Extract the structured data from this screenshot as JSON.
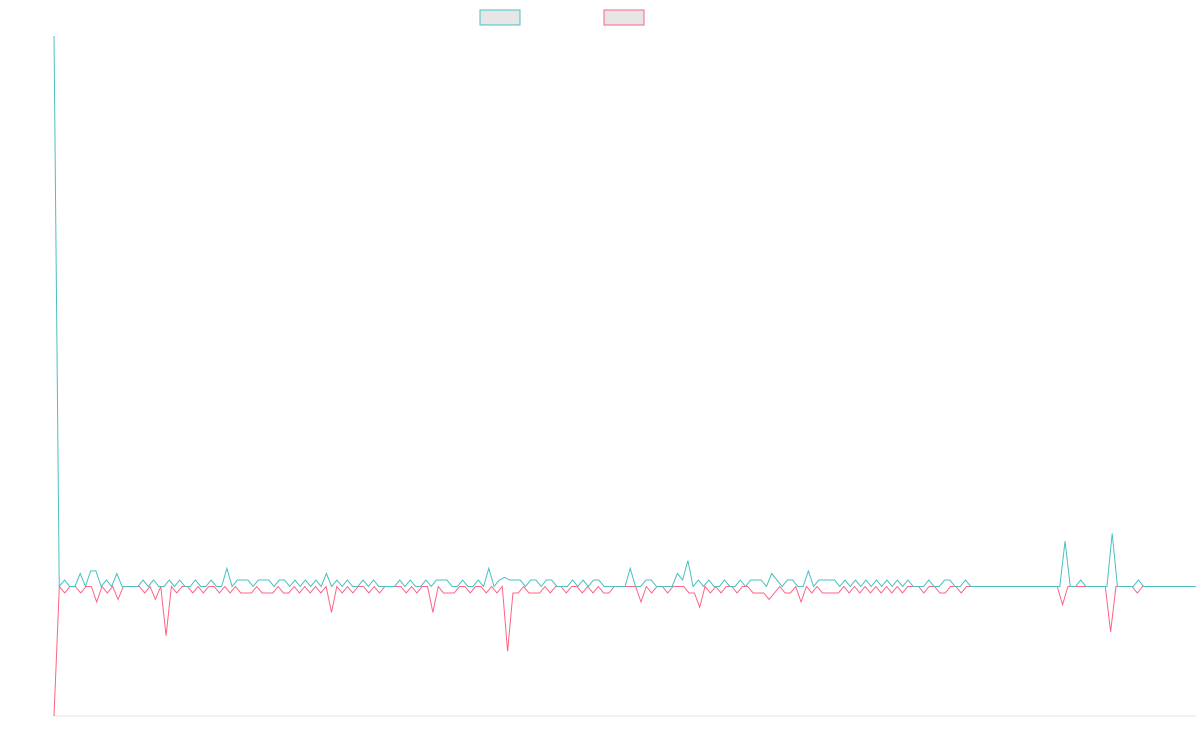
{
  "chart_data": {
    "type": "line",
    "title": "",
    "xlabel": "",
    "ylabel": "",
    "grid": false,
    "legend_position": "top-center",
    "ylim": [
      -1,
      4.25
    ],
    "series": [
      {
        "color": "#4bc0c0",
        "legend_fill": "#e6e6e6",
        "values": [
          4.25,
          0,
          0.05,
          0,
          0,
          0.1,
          0,
          0.12,
          0.12,
          0,
          0.05,
          0,
          0.1,
          0,
          0,
          0,
          0,
          0.05,
          0,
          0.05,
          0,
          0,
          0.05,
          0,
          0.05,
          0,
          0,
          0.05,
          0,
          0,
          0.05,
          0,
          0,
          0.14,
          0,
          0.05,
          0.05,
          0.05,
          0,
          0.05,
          0.05,
          0.05,
          0,
          0.05,
          0.05,
          0,
          0.05,
          0,
          0.05,
          0,
          0.05,
          0,
          0.1,
          0,
          0.05,
          0,
          0.05,
          0,
          0,
          0.05,
          0,
          0.05,
          0,
          0,
          0,
          0,
          0.05,
          0,
          0.05,
          0,
          0,
          0.05,
          0,
          0.05,
          0.05,
          0.05,
          0,
          0,
          0.05,
          0,
          0,
          0.05,
          0,
          0.14,
          0,
          0.05,
          0.07,
          0.05,
          0.05,
          0.05,
          0,
          0.05,
          0.05,
          0,
          0.05,
          0.05,
          0,
          0,
          0,
          0.05,
          0,
          0.05,
          0,
          0.05,
          0.05,
          0,
          0,
          0,
          0,
          0,
          0.14,
          0,
          0,
          0.05,
          0.05,
          0,
          0,
          0,
          0,
          0.1,
          0.05,
          0.2,
          0,
          0.05,
          0,
          0.05,
          0,
          0,
          0.05,
          0,
          0,
          0.05,
          0,
          0.05,
          0.05,
          0.05,
          0,
          0.1,
          0.05,
          0,
          0.05,
          0.05,
          0,
          0,
          0.12,
          0,
          0.05,
          0.05,
          0.05,
          0.05,
          0,
          0.05,
          0,
          0.05,
          0,
          0.05,
          0,
          0.05,
          0,
          0.05,
          0,
          0.05,
          0,
          0.05,
          0,
          0,
          0,
          0.05,
          0,
          0,
          0.05,
          0.05,
          0,
          0,
          0.05,
          0,
          0,
          0,
          0,
          0,
          0,
          0,
          0,
          0,
          0,
          0,
          0,
          0,
          0,
          0,
          0,
          0,
          0,
          0.35,
          0,
          0,
          0.05,
          0,
          0,
          0,
          0,
          0,
          0.41,
          0,
          0,
          0,
          0,
          0.05,
          0,
          0,
          0,
          0,
          0,
          0,
          0,
          0,
          0,
          0,
          0
        ]
      },
      {
        "color": "#ff6384",
        "legend_fill": "#e6e6e6",
        "values": [
          -1,
          0,
          -0.05,
          0,
          0,
          -0.05,
          0,
          0,
          -0.12,
          0,
          -0.05,
          0,
          -0.1,
          0,
          0,
          0,
          0,
          -0.05,
          0,
          -0.1,
          0,
          -0.38,
          0,
          -0.05,
          0,
          0,
          -0.05,
          0,
          -0.05,
          0,
          0,
          -0.05,
          0,
          -0.05,
          0,
          -0.05,
          -0.05,
          -0.05,
          0,
          -0.05,
          -0.05,
          -0.05,
          0,
          -0.05,
          -0.05,
          0,
          -0.05,
          0,
          -0.05,
          0,
          -0.05,
          0,
          -0.2,
          0,
          -0.05,
          0,
          -0.05,
          0,
          0,
          -0.05,
          0,
          -0.05,
          0,
          0,
          0,
          0,
          -0.05,
          0,
          -0.05,
          0,
          0,
          -0.2,
          0,
          -0.05,
          -0.05,
          -0.05,
          0,
          0,
          -0.05,
          0,
          0,
          -0.05,
          0,
          -0.05,
          0,
          -0.5,
          -0.05,
          -0.05,
          0,
          -0.05,
          -0.05,
          -0.05,
          0,
          -0.05,
          0,
          0,
          -0.05,
          0,
          0,
          -0.05,
          0,
          -0.05,
          0,
          -0.05,
          -0.05,
          0,
          0,
          0,
          0,
          0,
          -0.12,
          0,
          -0.05,
          0,
          0,
          -0.05,
          0,
          0,
          0,
          -0.05,
          -0.05,
          -0.16,
          0,
          -0.05,
          0,
          -0.05,
          0,
          0,
          -0.05,
          0,
          0,
          -0.05,
          -0.05,
          -0.05,
          -0.1,
          -0.05,
          0,
          -0.05,
          -0.05,
          0,
          -0.12,
          0,
          -0.05,
          0,
          -0.05,
          -0.05,
          -0.05,
          -0.05,
          0,
          -0.05,
          0,
          -0.05,
          0,
          -0.05,
          0,
          -0.05,
          0,
          -0.05,
          0,
          -0.05,
          0,
          0,
          0,
          -0.05,
          0,
          0,
          -0.05,
          -0.05,
          0,
          0,
          -0.05,
          0,
          0,
          0,
          0,
          0,
          0,
          0,
          0,
          0,
          0,
          0,
          0,
          0,
          0,
          0,
          0,
          0,
          0,
          -0.14,
          0,
          0,
          0,
          0,
          0,
          0,
          0,
          0,
          -0.35,
          0,
          0,
          0,
          0,
          -0.05,
          0,
          0,
          0,
          0,
          0,
          0,
          0,
          0,
          0,
          0,
          0
        ]
      }
    ]
  }
}
